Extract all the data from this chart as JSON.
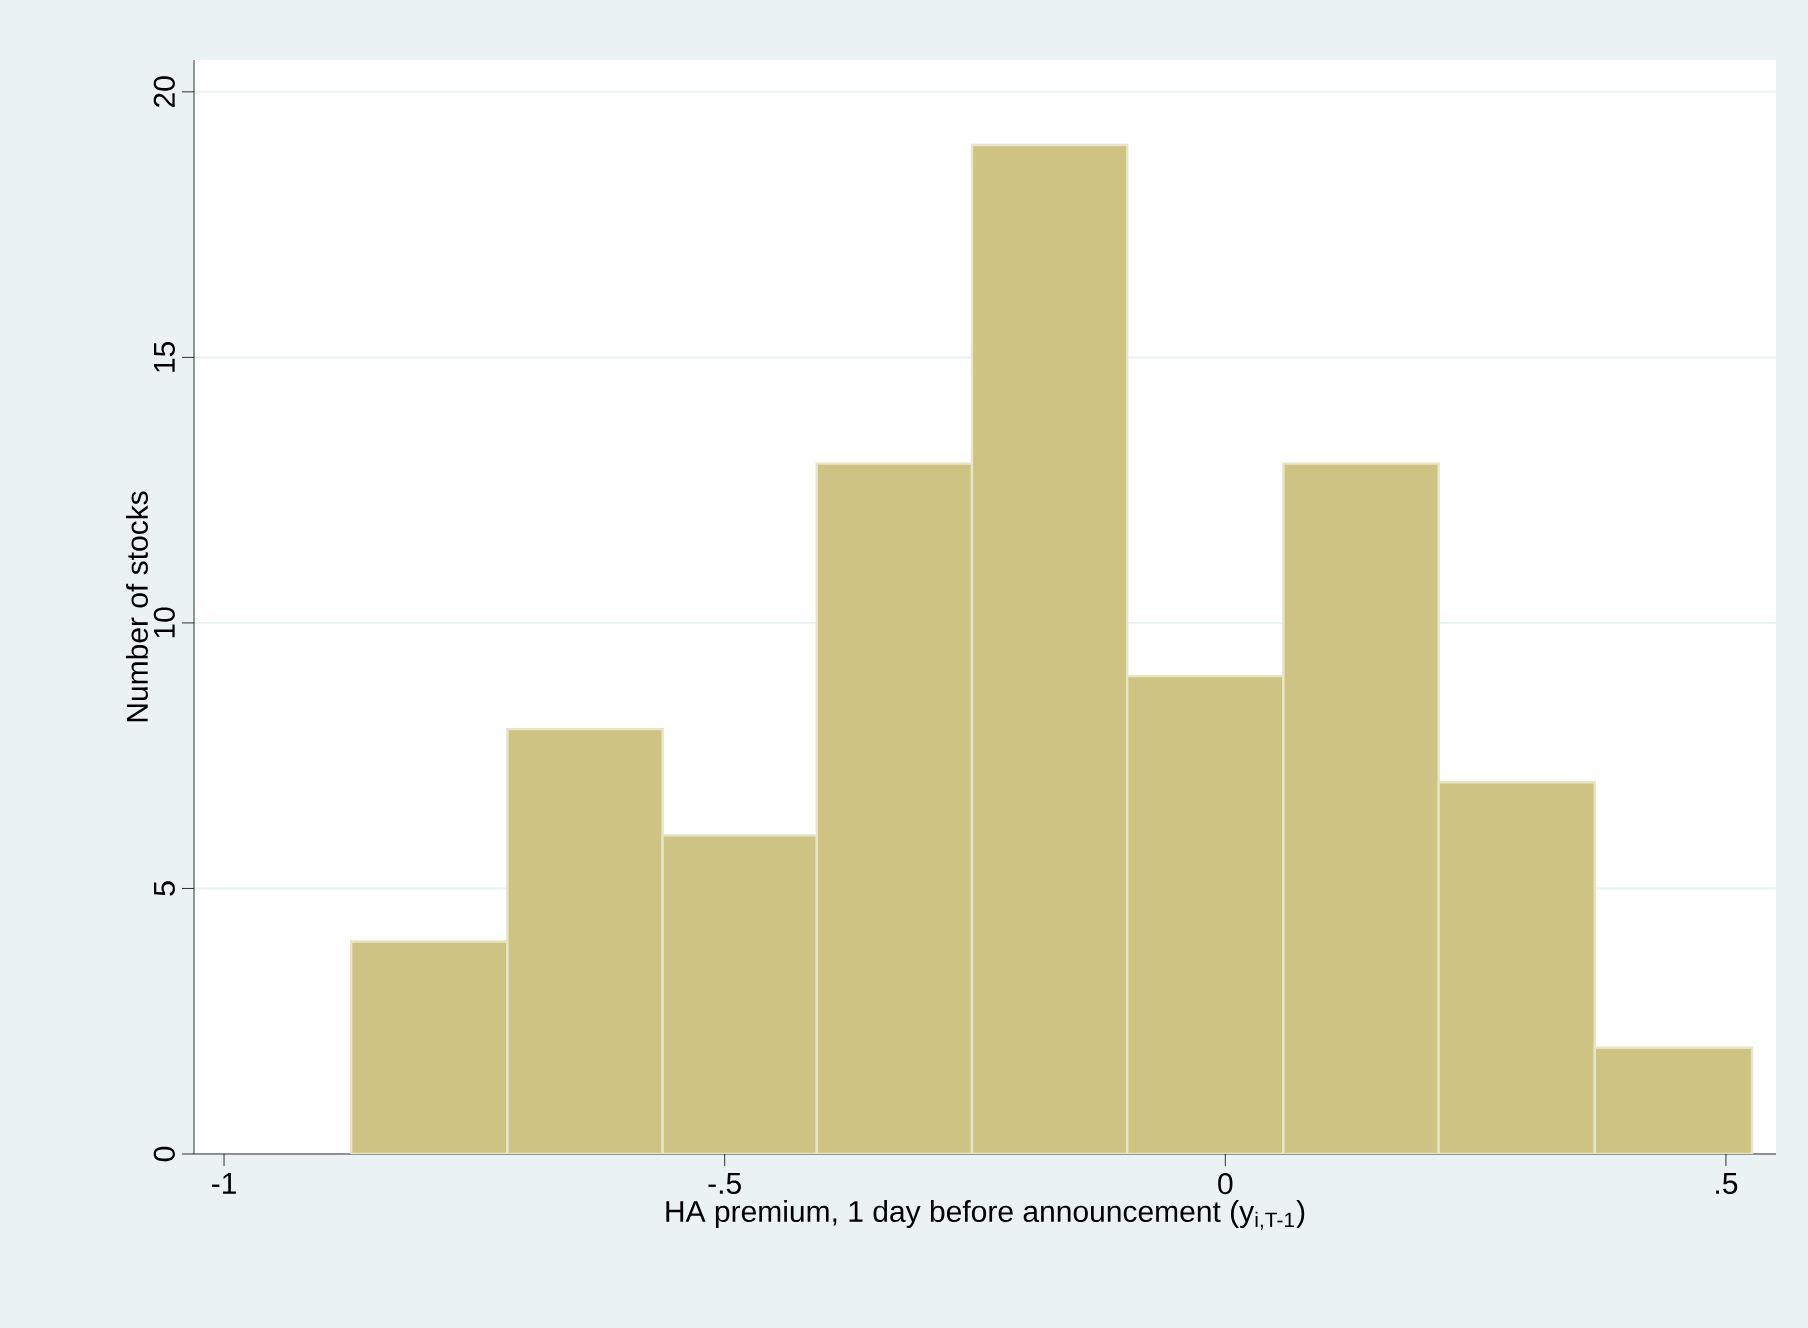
{
  "chart_data": {
    "type": "histogram",
    "xlabel": "HA premium, 1 day before announcement (y$_{i,T-1}$)",
    "ylabel": "Number of stocks",
    "bins": [
      -0.873,
      -0.717,
      -0.562,
      -0.408,
      -0.253,
      -0.098,
      0.058,
      0.213,
      0.369,
      0.526
    ],
    "values": [
      4,
      8,
      6,
      13,
      19,
      9,
      13,
      7,
      2
    ],
    "color": "#cdc382",
    "xlim": [
      -1.03,
      0.55
    ],
    "ylim": [
      0,
      20.6
    ],
    "xticks": [
      {
        "value": -1,
        "label": "-1"
      },
      {
        "value": -0.5,
        "label": "-.5"
      },
      {
        "value": 0,
        "label": "0"
      },
      {
        "value": 0.5,
        "label": ".5"
      }
    ],
    "yticks": [
      0,
      5,
      10,
      15,
      20
    ],
    "grid": "y"
  }
}
